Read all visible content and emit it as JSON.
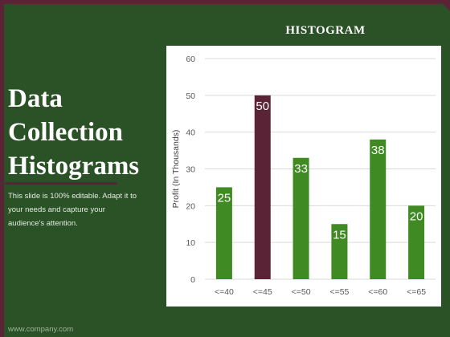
{
  "slide": {
    "title_lines": [
      "Data",
      "Collection",
      "Histograms"
    ],
    "description_lines": [
      "This slide is 100% editable. Adapt it to",
      "your needs and capture your",
      "audience's attention."
    ],
    "footer": "www.company.com"
  },
  "colors": {
    "background": "#2a5226",
    "accent": "#5a2436",
    "bar_default": "#3f8a22",
    "bar_highlight": "#5a2436"
  },
  "chart_data": {
    "type": "bar",
    "title": "HISTOGRAM",
    "xlabel": "",
    "ylabel": "Profit  (In Thousands)",
    "categories": [
      "<=40",
      "<=45",
      "<=50",
      "<=55",
      "<=60",
      "<=65"
    ],
    "values": [
      25,
      50,
      33,
      15,
      38,
      20
    ],
    "highlight_index": 1,
    "ylim": [
      0,
      60
    ],
    "yticks": [
      0,
      10,
      20,
      30,
      40,
      50,
      60
    ],
    "grid": true,
    "data_labels": true,
    "legend": "none"
  }
}
